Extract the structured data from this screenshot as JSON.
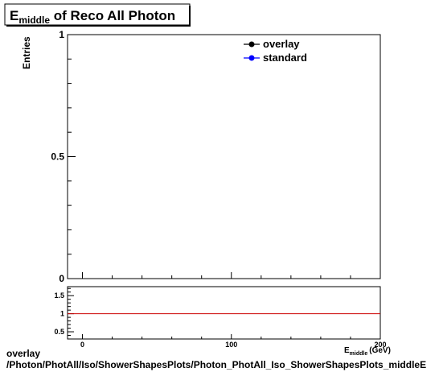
{
  "chart_data": [
    {
      "type": "line",
      "title": {
        "main": "E",
        "subscript": "middle",
        "rest": " of Reco All Photon"
      },
      "ylabel": "Entries",
      "xlabel": "E",
      "xlabel_subscript": "middle",
      "xlabel_unit": "(GeV)",
      "xlim": [
        -10,
        200
      ],
      "ylim": [
        0,
        1
      ],
      "y_ticks": [
        {
          "value": 0,
          "label": "0"
        },
        {
          "value": 0.5,
          "label": "0.5"
        },
        {
          "value": 1,
          "label": "1"
        }
      ],
      "legend_position": "top-right",
      "series": [
        {
          "name": "overlay",
          "color": "#000000",
          "x": [],
          "y": []
        },
        {
          "name": "standard",
          "color": "#0000ff",
          "x": [],
          "y": []
        }
      ]
    },
    {
      "type": "line",
      "role": "ratio",
      "xlim": [
        -10,
        200
      ],
      "ylim": [
        0.3,
        1.75
      ],
      "x_ticks": [
        {
          "value": 0,
          "label": "0"
        },
        {
          "value": 100,
          "label": "100"
        },
        {
          "value": 200,
          "label": "200"
        }
      ],
      "y_ticks": [
        {
          "value": 0.5,
          "label": "0.5"
        },
        {
          "value": 1,
          "label": "1"
        },
        {
          "value": 1.5,
          "label": "1.5"
        }
      ],
      "reference_line": {
        "y": 1,
        "color": "#cc0000"
      }
    }
  ],
  "footer": {
    "line1": "overlay",
    "line2": "/Photon/PhotAll/Iso/ShowerShapesPlots/Photon_PhotAll_Iso_ShowerShapesPlots_middleE"
  },
  "colors": {
    "frame": "#000000",
    "background": "#ffffff"
  }
}
